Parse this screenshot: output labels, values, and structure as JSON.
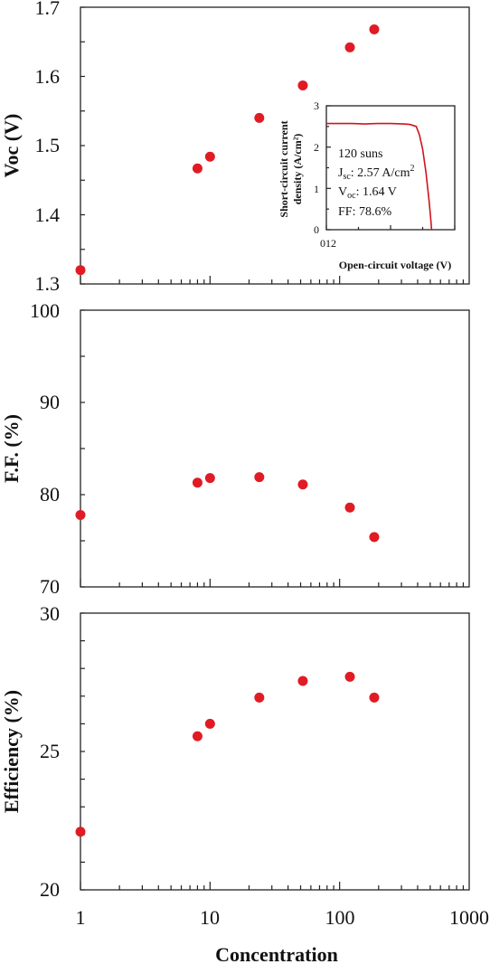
{
  "colors": {
    "marker": "#e01b24",
    "axis": "#222222",
    "inset_curve": "#d0141c"
  },
  "shared_x": {
    "label": "Concentration",
    "scale": "log",
    "range": [
      1,
      1000
    ],
    "tick_labels": [
      "1",
      "10",
      "100",
      "1000"
    ]
  },
  "chart_data": [
    {
      "type": "scatter",
      "ylabel": "Voc (V)",
      "xlabel": "Concentration",
      "xscale": "log",
      "xlim": [
        1,
        1000
      ],
      "ylim": [
        1.3,
        1.7
      ],
      "y_tick_labels": [
        "1.3",
        "1.4",
        "1.5",
        "1.6",
        "1.7"
      ],
      "grid": false,
      "x": [
        1,
        8,
        10,
        24,
        52,
        120,
        185
      ],
      "y": [
        1.32,
        1.467,
        1.484,
        1.54,
        1.587,
        1.642,
        1.668
      ],
      "inset": {
        "type": "line",
        "xlabel": "Open-circuit voltage (V)",
        "ylabel_line1": "Short-circuit current",
        "ylabel_line2": "density (A/cm²)",
        "xlim": [
          0,
          2
        ],
        "ylim": [
          0,
          3
        ],
        "x_tick_label": "012",
        "y_tick_labels": [
          "0",
          "1",
          "2",
          "3"
        ],
        "annotations": {
          "suns": "120 suns",
          "jsc_sym": "J",
          "jsc_sub": "sc",
          "jsc_val": ": 2.57 A/cm",
          "jsc_sup": "2",
          "voc_sym": "V",
          "voc_sub": "oc",
          "voc_val": ": 1.64 V",
          "ff": "FF: 78.6%"
        },
        "x": [
          0,
          0.2,
          0.4,
          0.6,
          0.8,
          1.0,
          1.2,
          1.3,
          1.4,
          1.45,
          1.5,
          1.55,
          1.6,
          1.63,
          1.64
        ],
        "y": [
          2.57,
          2.57,
          2.57,
          2.56,
          2.57,
          2.57,
          2.56,
          2.55,
          2.5,
          2.3,
          1.95,
          1.4,
          0.7,
          0.2,
          0
        ]
      }
    },
    {
      "type": "scatter",
      "ylabel": "F.F. (%)",
      "xlabel": "Concentration",
      "xscale": "log",
      "xlim": [
        1,
        1000
      ],
      "ylim": [
        70,
        100
      ],
      "y_tick_labels": [
        "70",
        "80",
        "90",
        "100"
      ],
      "grid": false,
      "x": [
        1,
        8,
        10,
        24,
        52,
        120,
        185
      ],
      "y": [
        77.8,
        81.3,
        81.8,
        81.9,
        81.1,
        78.6,
        75.4
      ]
    },
    {
      "type": "scatter",
      "ylabel": "Efficiency (%)",
      "xlabel": "Concentration",
      "xscale": "log",
      "xlim": [
        1,
        1000
      ],
      "ylim": [
        20,
        30
      ],
      "y_tick_labels": [
        "20",
        "25",
        "30"
      ],
      "grid": false,
      "x": [
        1,
        8,
        10,
        24,
        52,
        120,
        185
      ],
      "y": [
        22.1,
        25.55,
        26.0,
        26.95,
        27.55,
        27.7,
        26.95
      ]
    }
  ]
}
